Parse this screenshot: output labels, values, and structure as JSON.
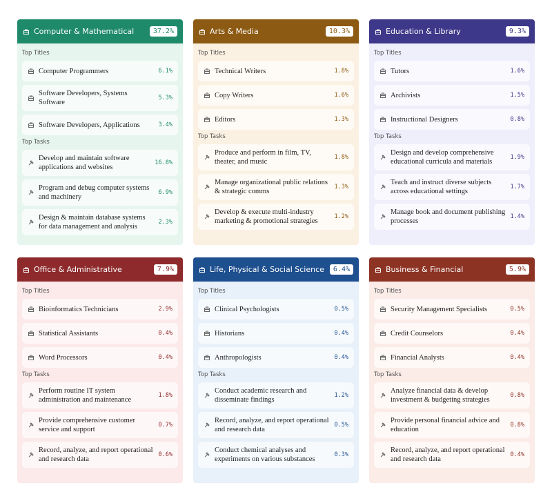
{
  "labels": {
    "titles": "Top Titles",
    "tasks": "Top Tasks"
  },
  "cards": [
    {
      "title": "Computer & Mathematical",
      "share": "37.2%",
      "color": "#1f8a6a",
      "background": "#e7f5ef",
      "titles": [
        {
          "name": "Computer Programmers",
          "share": "6.1%"
        },
        {
          "name": "Software Developers, Systems Software",
          "share": "5.3%"
        },
        {
          "name": "Software Developers, Applications",
          "share": "3.4%"
        }
      ],
      "tasks": [
        {
          "name": "Develop and maintain software applications and websites",
          "share": "16.8%"
        },
        {
          "name": "Program and debug computer systems and machinery",
          "share": "6.9%"
        },
        {
          "name": "Design & maintain database systems for data management and analysis",
          "share": "2.3%"
        }
      ]
    },
    {
      "title": "Arts & Media",
      "share": "10.3%",
      "color": "#8c5a12",
      "background": "#fbf1e2",
      "titles": [
        {
          "name": "Technical Writers",
          "share": "1.8%"
        },
        {
          "name": "Copy Writers",
          "share": "1.6%"
        },
        {
          "name": "Editors",
          "share": "1.3%"
        }
      ],
      "tasks": [
        {
          "name": "Produce and perform in film, TV, theater, and music",
          "share": "1.8%"
        },
        {
          "name": "Manage organizational public relations & strategic comms",
          "share": "1.3%"
        },
        {
          "name": "Develop & execute multi-industry marketing & promotional strategies",
          "share": "1.2%"
        }
      ]
    },
    {
      "title": "Education & Library",
      "share": "9.3%",
      "color": "#3d3889",
      "background": "#efeefb",
      "titles": [
        {
          "name": "Tutors",
          "share": "1.6%"
        },
        {
          "name": "Archivists",
          "share": "1.5%"
        },
        {
          "name": "Instructional Designers",
          "share": "0.8%"
        }
      ],
      "tasks": [
        {
          "name": "Design and develop comprehensive educational curricula and materials",
          "share": "1.9%"
        },
        {
          "name": "Teach and instruct diverse subjects across educational settings",
          "share": "1.7%"
        },
        {
          "name": "Manage book and document publishing processes",
          "share": "1.4%"
        }
      ]
    },
    {
      "title": "Office & Administrative",
      "share": "7.9%",
      "color": "#8e2a2c",
      "background": "#fce9e9",
      "titles": [
        {
          "name": "Bioinformatics Technicians",
          "share": "2.9%"
        },
        {
          "name": "Statistical Assistants",
          "share": "0.4%"
        },
        {
          "name": "Word Processors",
          "share": "0.4%"
        }
      ],
      "tasks": [
        {
          "name": "Perform routine IT system administration and maintenance",
          "share": "1.8%"
        },
        {
          "name": "Provide comprehensive customer service and support",
          "share": "0.7%"
        },
        {
          "name": "Record, analyze, and report operational and research data",
          "share": "0.6%"
        }
      ]
    },
    {
      "title": "Life, Physical & Social Science",
      "share": "6.4%",
      "color": "#1e4f8e",
      "background": "#e8f0fa",
      "titles": [
        {
          "name": "Clinical Psychologists",
          "share": "0.5%"
        },
        {
          "name": "Historians",
          "share": "0.4%"
        },
        {
          "name": "Anthropologists",
          "share": "0.4%"
        }
      ],
      "tasks": [
        {
          "name": "Conduct academic research and disseminate findings",
          "share": "1.2%"
        },
        {
          "name": "Record, analyze, and report operational and research data",
          "share": "0.5%"
        },
        {
          "name": "Conduct chemical analyses and experiments on various substances",
          "share": "0.3%"
        }
      ]
    },
    {
      "title": "Business & Financial",
      "share": "5.9%",
      "color": "#8d3324",
      "background": "#fbece8",
      "titles": [
        {
          "name": "Security Management Specialists",
          "share": "0.5%"
        },
        {
          "name": "Credit Counselors",
          "share": "0.4%"
        },
        {
          "name": "Financial Analysts",
          "share": "0.4%"
        }
      ],
      "tasks": [
        {
          "name": "Analyze financial data & develop investment & budgeting strategies",
          "share": "0.8%"
        },
        {
          "name": "Provide personal financial advice and education",
          "share": "0.8%"
        },
        {
          "name": "Record, analyze, and report operational and research data",
          "share": "0.4%"
        }
      ]
    }
  ]
}
